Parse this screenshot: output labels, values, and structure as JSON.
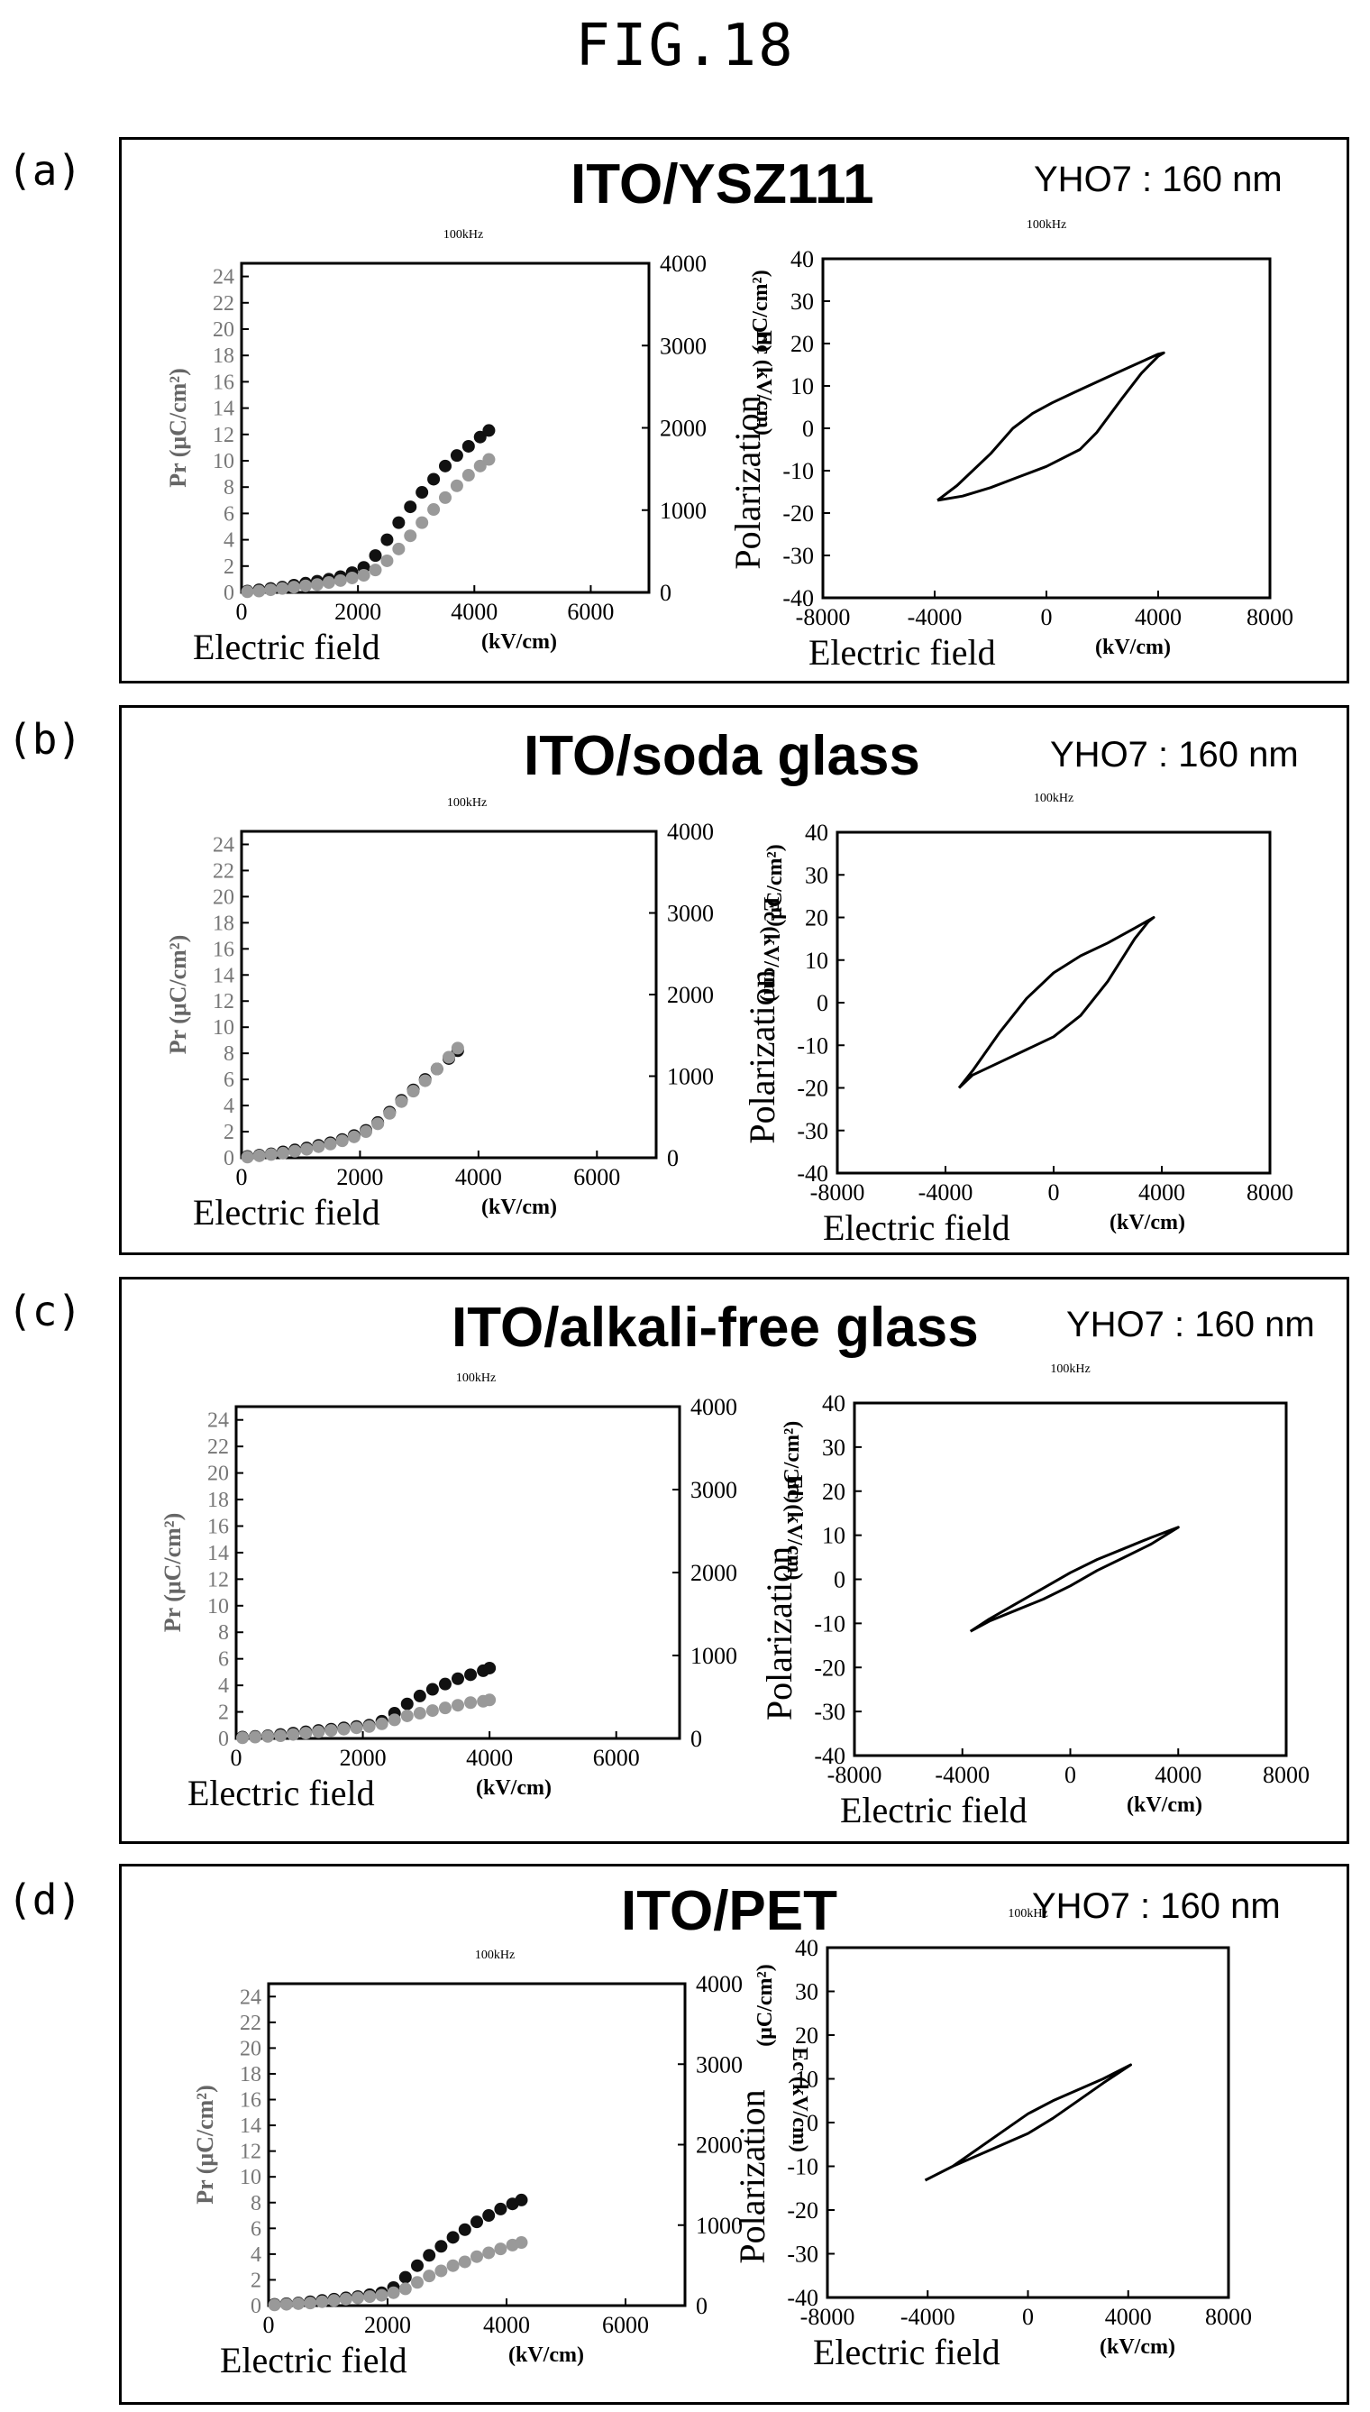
{
  "figure_title": "FIG.18",
  "colors": {
    "ink": "#000000",
    "pr_series": "#111111",
    "ec_series": "#999999"
  },
  "chart_data": [
    {
      "panel": "(a)",
      "title": "ITO/YSZ111",
      "sample": "YHO7 : 160 nm",
      "left_chart": {
        "type": "scatter",
        "freq_label": "100kHz",
        "xlabel": "Electric field",
        "xunit": "(kV/cm)",
        "xlim": [
          0,
          7000
        ],
        "xticks": [
          0,
          2000,
          4000,
          6000
        ],
        "ylabel": "Pr (μC/cm²)",
        "ylim": [
          0,
          25
        ],
        "yticks": [
          0,
          2,
          4,
          6,
          8,
          10,
          12,
          14,
          16,
          18,
          20,
          22,
          24
        ],
        "y2label": "Ec (kV/cm)",
        "y2lim": [
          0,
          4000
        ],
        "y2ticks": [
          0,
          1000,
          2000,
          3000,
          4000
        ],
        "series": [
          {
            "color": "#111111",
            "x": [
              100,
              300,
              500,
              700,
              900,
              1100,
              1300,
              1500,
              1700,
              1900,
              2100,
              2300,
              2500,
              2700,
              2900,
              3100,
              3300,
              3500,
              3700,
              3900,
              4100,
              4250
            ],
            "y": [
              0.1,
              0.2,
              0.3,
              0.4,
              0.55,
              0.7,
              0.85,
              1.0,
              1.2,
              1.5,
              1.9,
              2.8,
              4.0,
              5.3,
              6.5,
              7.6,
              8.6,
              9.6,
              10.4,
              11.1,
              11.8,
              12.3
            ]
          },
          {
            "color": "#999999",
            "x": [
              100,
              300,
              500,
              700,
              900,
              1100,
              1300,
              1500,
              1700,
              1900,
              2100,
              2300,
              2500,
              2700,
              2900,
              3100,
              3300,
              3500,
              3700,
              3900,
              4100,
              4250
            ],
            "y": [
              0.05,
              0.1,
              0.2,
              0.3,
              0.4,
              0.5,
              0.6,
              0.75,
              0.9,
              1.1,
              1.3,
              1.7,
              2.4,
              3.3,
              4.3,
              5.3,
              6.3,
              7.2,
              8.1,
              8.9,
              9.6,
              10.1
            ]
          }
        ]
      },
      "right_chart": {
        "type": "line",
        "freq_label": "100kHz",
        "xlabel": "Electric field",
        "xunit": "(kV/cm)",
        "xlim": [
          -8000,
          8000
        ],
        "xticks": [
          -8000,
          -4000,
          0,
          4000,
          8000
        ],
        "ylabel": "Polarization",
        "yunit": "(μC/cm²)",
        "ylim": [
          -40,
          40
        ],
        "yticks": [
          40,
          30,
          20,
          10,
          0,
          -10,
          -20,
          -30,
          -40
        ],
        "loop": {
          "x": [
            -3900,
            -3200,
            -2000,
            -1200,
            -500,
            200,
            1000,
            2000,
            3000,
            4000,
            4200,
            4000,
            3400,
            2700,
            1800,
            1200,
            0,
            -1000,
            -2000,
            -3000,
            -3900
          ],
          "y": [
            -17,
            -13.5,
            -6,
            0,
            3.5,
            6,
            8.5,
            11.5,
            14.5,
            17.5,
            17.8,
            17,
            13,
            7,
            -1,
            -5,
            -9,
            -11.5,
            -14,
            -16,
            -17
          ]
        }
      }
    },
    {
      "panel": "(b)",
      "title": "ITO/soda glass",
      "sample": "YHO7 : 160 nm",
      "left_chart": {
        "type": "scatter",
        "freq_label": "100kHz",
        "xlabel": "Electric field",
        "xunit": "(kV/cm)",
        "xlim": [
          0,
          7000
        ],
        "xticks": [
          0,
          2000,
          4000,
          6000
        ],
        "ylabel": "Pr (μC/cm²)",
        "ylim": [
          0,
          25
        ],
        "yticks": [
          0,
          2,
          4,
          6,
          8,
          10,
          12,
          14,
          16,
          18,
          20,
          22,
          24
        ],
        "y2label": "Ec (kV/cm)",
        "y2lim": [
          0,
          4000
        ],
        "y2ticks": [
          0,
          1000,
          2000,
          3000,
          4000
        ],
        "series": [
          {
            "color": "#111111",
            "x": [
              100,
              300,
              500,
              700,
              900,
              1100,
              1300,
              1500,
              1700,
              1900,
              2100,
              2300,
              2500,
              2700,
              2900,
              3100,
              3300,
              3500,
              3650
            ],
            "y": [
              0.1,
              0.2,
              0.3,
              0.45,
              0.6,
              0.75,
              0.95,
              1.15,
              1.4,
              1.7,
              2.1,
              2.7,
              3.5,
              4.4,
              5.2,
              6.0,
              6.8,
              7.6,
              8.2
            ]
          },
          {
            "color": "#999999",
            "x": [
              100,
              300,
              500,
              700,
              900,
              1100,
              1300,
              1500,
              1700,
              1900,
              2100,
              2300,
              2500,
              2700,
              2900,
              3100,
              3300,
              3500,
              3650
            ],
            "y": [
              0.05,
              0.15,
              0.25,
              0.35,
              0.5,
              0.65,
              0.85,
              1.05,
              1.3,
              1.6,
              2.0,
              2.6,
              3.4,
              4.3,
              5.1,
              5.9,
              6.8,
              7.7,
              8.4
            ]
          }
        ]
      },
      "right_chart": {
        "type": "line",
        "freq_label": "100kHz",
        "xlabel": "Electric field",
        "xunit": "(kV/cm)",
        "xlim": [
          -8000,
          8000
        ],
        "xticks": [
          -8000,
          -4000,
          0,
          4000,
          8000
        ],
        "ylabel": "Polarization",
        "yunit": "(μC/cm²)",
        "ylim": [
          -40,
          40
        ],
        "yticks": [
          40,
          30,
          20,
          10,
          0,
          -10,
          -20,
          -30,
          -40
        ],
        "loop": {
          "x": [
            -3500,
            -3000,
            -2000,
            -1000,
            0,
            1000,
            2000,
            3000,
            3700,
            3500,
            3000,
            2000,
            1000,
            0,
            -1000,
            -2000,
            -3000,
            -3500
          ],
          "y": [
            -20,
            -16,
            -7,
            1,
            7,
            11,
            14,
            17.5,
            20,
            19,
            15,
            5,
            -3,
            -8,
            -11,
            -14,
            -17,
            -20
          ]
        }
      }
    },
    {
      "panel": "(c)",
      "title": "ITO/alkali-free glass",
      "sample": "YHO7 : 160 nm",
      "left_chart": {
        "type": "scatter",
        "freq_label": "100kHz",
        "xlabel": "Electric field",
        "xunit": "(kV/cm)",
        "xlim": [
          0,
          7000
        ],
        "xticks": [
          0,
          2000,
          4000,
          6000
        ],
        "ylabel": "Pr (μC/cm²)",
        "ylim": [
          0,
          25
        ],
        "yticks": [
          0,
          2,
          4,
          6,
          8,
          10,
          12,
          14,
          16,
          18,
          20,
          22,
          24
        ],
        "y2label": "Ec (kV/cm)",
        "y2lim": [
          0,
          4000
        ],
        "y2ticks": [
          0,
          1000,
          2000,
          3000,
          4000
        ],
        "series": [
          {
            "color": "#111111",
            "x": [
              100,
              300,
              500,
              700,
              900,
              1100,
              1300,
              1500,
              1700,
              1900,
              2100,
              2300,
              2500,
              2700,
              2900,
              3100,
              3300,
              3500,
              3700,
              3900,
              4000
            ],
            "y": [
              0.1,
              0.15,
              0.2,
              0.3,
              0.4,
              0.5,
              0.6,
              0.7,
              0.8,
              0.9,
              1.0,
              1.3,
              1.9,
              2.6,
              3.2,
              3.7,
              4.1,
              4.5,
              4.8,
              5.1,
              5.3
            ]
          },
          {
            "color": "#999999",
            "x": [
              100,
              300,
              500,
              700,
              900,
              1100,
              1300,
              1500,
              1700,
              1900,
              2100,
              2300,
              2500,
              2700,
              2900,
              3100,
              3300,
              3500,
              3700,
              3900,
              4000
            ],
            "y": [
              0.05,
              0.1,
              0.15,
              0.2,
              0.3,
              0.4,
              0.5,
              0.6,
              0.7,
              0.8,
              0.9,
              1.1,
              1.4,
              1.7,
              1.9,
              2.1,
              2.3,
              2.5,
              2.7,
              2.8,
              2.9
            ]
          }
        ]
      },
      "right_chart": {
        "type": "line",
        "freq_label": "100kHz",
        "xlabel": "Electric field",
        "xunit": "(kV/cm)",
        "xlim": [
          -8000,
          8000
        ],
        "xticks": [
          -8000,
          -4000,
          0,
          4000,
          8000
        ],
        "ylabel": "Polarization",
        "yunit": "(μC/cm²)",
        "ylim": [
          -40,
          40
        ],
        "yticks": [
          40,
          30,
          20,
          10,
          0,
          -10,
          -20,
          -30,
          -40
        ],
        "loop": {
          "x": [
            -3700,
            -3000,
            -2000,
            -1000,
            0,
            1000,
            2000,
            3000,
            4000,
            3000,
            2000,
            1000,
            0,
            -1000,
            -2000,
            -3000,
            -3700
          ],
          "y": [
            -11.8,
            -9,
            -5.5,
            -2,
            1.5,
            4.5,
            7,
            9.5,
            11.8,
            8,
            5,
            2,
            -1.5,
            -4.5,
            -7,
            -9.5,
            -11.8
          ]
        }
      }
    },
    {
      "panel": "(d)",
      "title": "ITO/PET",
      "sample": "YHO7 : 160 nm",
      "left_chart": {
        "type": "scatter",
        "freq_label": "100kHz",
        "xlabel": "Electric field",
        "xunit": "(kV/cm)",
        "xlim": [
          0,
          7000
        ],
        "xticks": [
          0,
          2000,
          4000,
          6000
        ],
        "ylabel": "Pr (μC/cm²)",
        "ylim": [
          0,
          25
        ],
        "yticks": [
          0,
          2,
          4,
          6,
          8,
          10,
          12,
          14,
          16,
          18,
          20,
          22,
          24
        ],
        "y2label": "Ec (kV/cm)",
        "y2lim": [
          0,
          4000
        ],
        "y2ticks": [
          0,
          1000,
          2000,
          3000,
          4000
        ],
        "series": [
          {
            "color": "#111111",
            "x": [
              100,
              300,
              500,
              700,
              900,
              1100,
              1300,
              1500,
              1700,
              1900,
              2100,
              2300,
              2500,
              2700,
              2900,
              3100,
              3300,
              3500,
              3700,
              3900,
              4100,
              4250
            ],
            "y": [
              0.1,
              0.15,
              0.2,
              0.3,
              0.4,
              0.5,
              0.6,
              0.7,
              0.85,
              1.0,
              1.4,
              2.2,
              3.1,
              3.9,
              4.6,
              5.3,
              5.9,
              6.5,
              7.0,
              7.5,
              7.9,
              8.2
            ]
          },
          {
            "color": "#999999",
            "x": [
              100,
              300,
              500,
              700,
              900,
              1100,
              1300,
              1500,
              1700,
              1900,
              2100,
              2300,
              2500,
              2700,
              2900,
              3100,
              3300,
              3500,
              3700,
              3900,
              4100,
              4250
            ],
            "y": [
              0.05,
              0.1,
              0.15,
              0.2,
              0.3,
              0.4,
              0.5,
              0.6,
              0.7,
              0.8,
              1.0,
              1.3,
              1.8,
              2.3,
              2.7,
              3.1,
              3.4,
              3.8,
              4.1,
              4.4,
              4.7,
              4.9
            ]
          }
        ]
      },
      "right_chart": {
        "type": "line",
        "freq_label": "100kHz",
        "xlabel": "Electric field",
        "xunit": "(kV/cm)",
        "xlim": [
          -8000,
          8000
        ],
        "xticks": [
          -8000,
          -4000,
          0,
          4000,
          8000
        ],
        "ylabel": "Polarization",
        "yunit": "(μC/cm²)",
        "ylim": [
          -40,
          40
        ],
        "yticks": [
          40,
          30,
          20,
          10,
          0,
          -10,
          -20,
          -30,
          -40
        ],
        "loop": {
          "x": [
            -4100,
            -3000,
            -2000,
            -1000,
            0,
            1000,
            2000,
            3000,
            4100,
            3000,
            2000,
            1000,
            0,
            -1000,
            -2000,
            -3000,
            -4100
          ],
          "y": [
            -13.2,
            -10,
            -6,
            -2,
            2,
            5,
            7.5,
            10,
            13.2,
            9,
            5,
            1,
            -2.5,
            -5,
            -7.5,
            -10,
            -13.2
          ]
        }
      }
    }
  ]
}
